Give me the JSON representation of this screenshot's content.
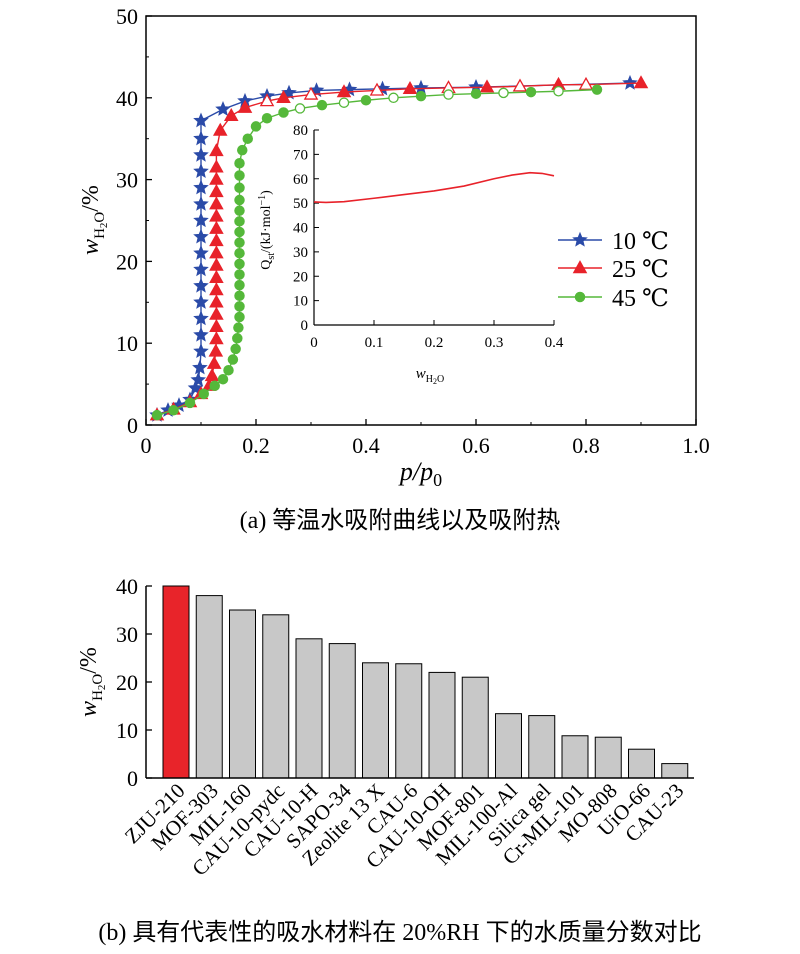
{
  "captions": {
    "a": "(a) 等温水吸附曲线以及吸附热",
    "b": "(b) 具有代表性的吸水材料在 20%RH 下的水质量分数对比"
  },
  "chart_data": [
    {
      "id": "isotherm",
      "type": "line",
      "title": "",
      "xlabel": "p/p0",
      "ylabel": "wH2O/%",
      "xlim": [
        0,
        1.0
      ],
      "ylim": [
        0,
        50
      ],
      "x_ticks": [
        "0",
        "0.2",
        "0.4",
        "0.6",
        "0.8",
        "1.0"
      ],
      "y_ticks": [
        "0",
        "10",
        "20",
        "30",
        "40",
        "50"
      ],
      "legend": {
        "placement": "right-middle"
      },
      "series": [
        {
          "name": "10 ℃",
          "color": "#2b4ba8",
          "marker": "star",
          "x": [
            0.02,
            0.04,
            0.06,
            0.08,
            0.09,
            0.095,
            0.098,
            0.1,
            0.1,
            0.1,
            0.1,
            0.1,
            0.1,
            0.1,
            0.1,
            0.1,
            0.1,
            0.1,
            0.1,
            0.1,
            0.1,
            0.1,
            0.14,
            0.18,
            0.22,
            0.26,
            0.31,
            0.37,
            0.43,
            0.5,
            0.6,
            0.88
          ],
          "y": [
            1.2,
            1.8,
            2.4,
            3.1,
            4.5,
            5.5,
            7.0,
            9.0,
            11.0,
            13.0,
            15.0,
            17.0,
            19.0,
            21.0,
            23.0,
            25.0,
            27.0,
            29.0,
            31.0,
            33.0,
            35.0,
            37.2,
            38.6,
            39.6,
            40.2,
            40.6,
            40.9,
            41.0,
            41.1,
            41.2,
            41.3,
            41.8
          ]
        },
        {
          "name": "25 ℃",
          "color": "#e8222a",
          "marker": "triangle",
          "x": [
            0.02,
            0.05,
            0.08,
            0.1,
            0.115,
            0.12,
            0.124,
            0.127,
            0.128,
            0.128,
            0.128,
            0.128,
            0.128,
            0.128,
            0.128,
            0.128,
            0.128,
            0.128,
            0.128,
            0.128,
            0.128,
            0.128,
            0.128,
            0.128,
            0.135,
            0.155,
            0.18,
            0.22,
            0.25,
            0.3,
            0.36,
            0.42,
            0.48,
            0.55,
            0.62,
            0.68,
            0.75,
            0.8,
            0.9
          ],
          "y": [
            1.2,
            1.9,
            2.8,
            3.8,
            4.8,
            6.0,
            7.5,
            9.0,
            10.5,
            12.0,
            13.5,
            15.0,
            16.5,
            18.0,
            19.5,
            21.0,
            22.5,
            24.0,
            25.5,
            27.0,
            28.5,
            30.0,
            31.5,
            33.5,
            36.0,
            37.8,
            38.8,
            39.6,
            40.0,
            40.4,
            40.7,
            40.9,
            41.1,
            41.2,
            41.3,
            41.4,
            41.6,
            41.6,
            41.8
          ],
          "hollow_from_index": 26
        },
        {
          "name": "45 ℃",
          "color": "#55b83a",
          "marker": "circle",
          "x": [
            0.02,
            0.05,
            0.08,
            0.105,
            0.125,
            0.14,
            0.15,
            0.158,
            0.163,
            0.166,
            0.168,
            0.17,
            0.17,
            0.17,
            0.17,
            0.17,
            0.17,
            0.17,
            0.17,
            0.17,
            0.17,
            0.17,
            0.17,
            0.17,
            0.17,
            0.17,
            0.175,
            0.185,
            0.2,
            0.22,
            0.25,
            0.28,
            0.32,
            0.36,
            0.4,
            0.45,
            0.5,
            0.55,
            0.6,
            0.65,
            0.7,
            0.75,
            0.82
          ],
          "y": [
            1.2,
            1.8,
            2.7,
            3.8,
            4.8,
            5.6,
            6.7,
            8.0,
            9.3,
            10.6,
            11.9,
            13.2,
            14.5,
            15.8,
            17.1,
            18.4,
            19.7,
            21.0,
            22.3,
            23.6,
            24.9,
            26.2,
            27.5,
            29.0,
            30.5,
            32.0,
            33.6,
            35.0,
            36.5,
            37.5,
            38.2,
            38.7,
            39.1,
            39.4,
            39.7,
            40.0,
            40.2,
            40.4,
            40.5,
            40.6,
            40.7,
            40.8,
            41.0
          ],
          "hollow_from_index": 31
        }
      ]
    },
    {
      "id": "heat",
      "type": "line",
      "title": "",
      "xlabel": "wH2O",
      "ylabel": "Qst/(kJ·mol⁻¹)",
      "xlim": [
        0,
        0.4
      ],
      "ylim": [
        0,
        80
      ],
      "x_ticks": [
        "0",
        "0.1",
        "0.2",
        "0.3",
        "0.4"
      ],
      "y_ticks": [
        "0",
        "10",
        "20",
        "30",
        "40",
        "50",
        "60",
        "70",
        "80"
      ],
      "series": [
        {
          "color": "#e8222a",
          "x": [
            0,
            0.02,
            0.05,
            0.1,
            0.15,
            0.2,
            0.25,
            0.3,
            0.33,
            0.36,
            0.38,
            0.4
          ],
          "y": [
            50.5,
            50.3,
            50.6,
            52.0,
            53.5,
            55.0,
            57.0,
            60.0,
            61.5,
            62.5,
            62.2,
            61.2
          ]
        }
      ]
    },
    {
      "id": "bars",
      "type": "bar",
      "title": "",
      "xlabel": "",
      "ylabel": "wH2O/%",
      "ylim": [
        0,
        40
      ],
      "y_ticks": [
        "0",
        "10",
        "20",
        "30",
        "40"
      ],
      "categories": [
        "ZJU-210",
        "MOF-303",
        "MIL-160",
        "CAU-10-pydc",
        "CAU-10-H",
        "SAPO-34",
        "Zeolite 13 X",
        "CAU-6",
        "CAU-10-OH",
        "MOF-801",
        "MIL-100-Al",
        "Silica gel",
        "Cr-MIL-101",
        "MO-808",
        "UiO-66",
        "CAU-23"
      ],
      "values": [
        40,
        38,
        35,
        34,
        29,
        28,
        24,
        23.8,
        22,
        21,
        13.4,
        13,
        8.8,
        8.5,
        6,
        3
      ],
      "colors": {
        "highlight": "#e8242a",
        "default": "#c8c8c8"
      }
    }
  ]
}
